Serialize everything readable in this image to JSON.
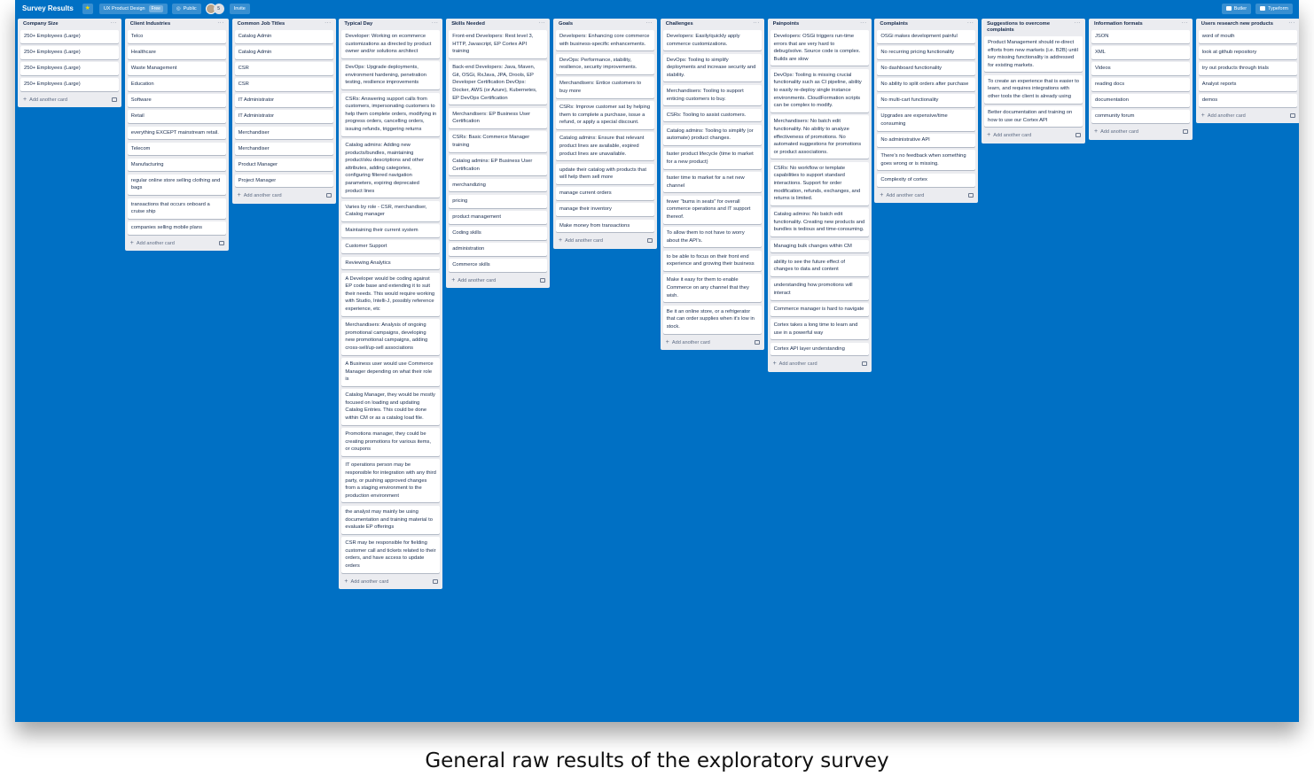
{
  "header": {
    "board_title": "Survey Results",
    "workspace": "UX Product Design",
    "workspace_badge": "Free",
    "visibility": "Public",
    "member_count": "5",
    "invite": "Invite",
    "butler": "Butler",
    "typeform": "Typeform"
  },
  "add_card_label": "Add another card",
  "lists": [
    {
      "title": "Company Size",
      "cards": [
        "250+ Employees (Large)",
        "250+ Employees (Large)",
        "250+ Employees (Large)",
        "250+ Employees (Large)"
      ]
    },
    {
      "title": "Client Industries",
      "cards": [
        "Telco",
        "Healthcare",
        "Waste Management",
        "Education",
        "Software",
        "Retail",
        "everything EXCEPT mainstream retail.",
        "Telecom",
        "Manufacturing",
        "regular online store selling clothing and bags",
        "transactions that occurs onboard a cruise ship",
        "companies selling mobile plans"
      ]
    },
    {
      "title": "Common Job Titles",
      "cards": [
        "Catalog Admin",
        "Catalog Admin",
        "CSR",
        "CSR",
        "IT Administrator",
        "IT Administrator",
        "Merchandiser",
        "Merchandiser",
        "Product Manager",
        "Project Manager"
      ]
    },
    {
      "title": "Typical Day",
      "cards": [
        "Developer: Working on ecommerce customizations as directed by product owner and/or solutions architect",
        "DevOps: Upgrade deployments, environment hardening, penetration testing, resilience improvements",
        "CSRs: Answering support calls from customers, impersonating customers to help them complete orders, modifying in progress orders, cancelling orders, issuing refunds, triggering returns",
        "Catalog admins: Adding new products/bundles, maintaining product/sku descriptions and other attributes, adding categories, configuring filtered navigation parameters, expiring deprecated product lines",
        "Varies by role - CSR, merchandiser, Catalog manager",
        "Maintaining their current system",
        "Customer Support",
        "Reviewing Analytics",
        "A Developer would be coding against EP code base and extending it to suit their needs. This would require working with Studio, Intelli-J, possibly reference experience, etc",
        "Merchandisers: Analysis of ongoing promotional campaigns, developing new promotional campaigns, adding cross-sell/up-sell associations",
        "A Business user would use Commerce Manager depending on what their role is",
        "Catalog Manager, they would be mostly focused on loading and updating Catalog Entries. This could be done within CM or as a catalog load file.",
        "Promotions manager, they could be creating promotions for various items, or coupons",
        "IT operations person may be responsible for integration with any third party, or pushing approved changes from a staging environment to the production environment",
        "the analyst may mainly be using documentation and training material to evaluate EP offerings",
        "CSR may be responsible for fielding customer call and tickets related to their orders, and have access to update orders"
      ]
    },
    {
      "title": "Skills Needed",
      "cards": [
        "Front-end Developers: Rest level 3, HTTP, Javascript, EP Cortex API training",
        "Back-end Developers: Java, Maven, Git, OSGi, RxJava, JPA, Drools, EP Developer Certification DevOps: Docker, AWS (or Azure), Kubernetes, EP DevOps Certification",
        "Merchandisers: EP Business User Certification",
        "CSRs: Basic Commerce Manager training",
        "Catalog admins: EP Business User Certification",
        "merchandizing",
        "pricing",
        "product management",
        "Coding skills",
        "administration",
        "Commerce skills"
      ]
    },
    {
      "title": "Goals",
      "cards": [
        "Developers: Enhancing core commerce with business-specific enhancements.",
        "DevOps: Performance, stability, resilience, security improvements.",
        "Merchandisers: Entice customers to buy more",
        "CSRs: Improve customer sat by helping them to complete a purchase, issue a refund, or apply a special discount.",
        "Catalog admins: Ensure that relevant product lines are available, expired product lines are unavailable.",
        "update their catalog with products that will help them sell more",
        "manage current orders",
        "manage their inventory",
        "Make money from transactions"
      ]
    },
    {
      "title": "Challenges",
      "cards": [
        "Developers: Easily/quickly apply commerce customizations.",
        "DevOps: Tooling to simplify deployments and increase security and stability.",
        "Merchandisers: Tooling to support enticing customers to buy.",
        "CSRs: Tooling to assist customers.",
        "Catalog admins: Tooling to simplify (or automate) product changes.",
        "faster product lifecycle (time to market for a new product)",
        "faster time to market for a net new channel",
        "fewer \"bums in seats\" for overall commerce operations and IT support thereof.",
        "To allow them to not have to worry about the API's.",
        "to be able to focus on their front end experience and growing their business",
        "Make it easy for them to enable Commerce on any channel that they wish.",
        "Be it an online store, or a refrigerator that can order supplies when it's low in stock."
      ]
    },
    {
      "title": "Painpoints",
      "cards": [
        "Developers: OSGi triggers run-time errors that are very hard to debug/solve. Source code is complex. Builds are slow",
        "DevOps: Tooling is missing crucial functionality such as CI pipeline, ability to easily re-deploy single instance environments. CloudFormation scripts can be complex to modify.",
        "Merchandisers: No batch edit functionality. No ability to analyze effectiveness of promotions. No automated suggestions for promotions or product associations.",
        "CSRs: No workflow or template capabilities to support standard interactions. Support for order modification, refunds, exchanges, and returns is limited.",
        "Catalog admins: No batch edit functionality. Creating new products and bundles is tedious and time-consuming.",
        "Managing bulk changes within CM",
        "ability to see the future effect of changes to data and content",
        "understanding how promotions will interact",
        "Commerce manager is hard to navigate",
        "Cortex takes a long time to learn and use in a powerful way",
        "Cortex API layer understanding"
      ]
    },
    {
      "title": "Complaints",
      "cards": [
        "OSGi makes development painful",
        "No recurring pricing functionality",
        "No dashboard functionality",
        "No ability to split orders after purchase",
        "No multi-cart functionality",
        "Upgrades are expensive/time consuming",
        "No administrative API",
        "There's no feedback when something goes wrong or is missing.",
        "Complexity of cortex"
      ]
    },
    {
      "title": "Suggestions to overcome complaints",
      "cards": [
        "Product Management should re-direct efforts from new markets (i.e. B2B) until key missing functionality is addressed for existing markets.",
        "To create an experience that is easier to learn, and requires integrations with other tools the client is already using",
        "Better documentation and training on how to use our Cortex API"
      ]
    },
    {
      "title": "Information formats",
      "cards": [
        "JSON",
        "XML",
        "Videos",
        "reading docs",
        "documentation",
        "community forum"
      ]
    },
    {
      "title": "Users research new products",
      "cards": [
        "word of mouth",
        "look at github repository",
        "try out products through trials",
        "Analyst reports",
        "demos"
      ]
    }
  ],
  "caption": "General raw results of the exploratory survey"
}
